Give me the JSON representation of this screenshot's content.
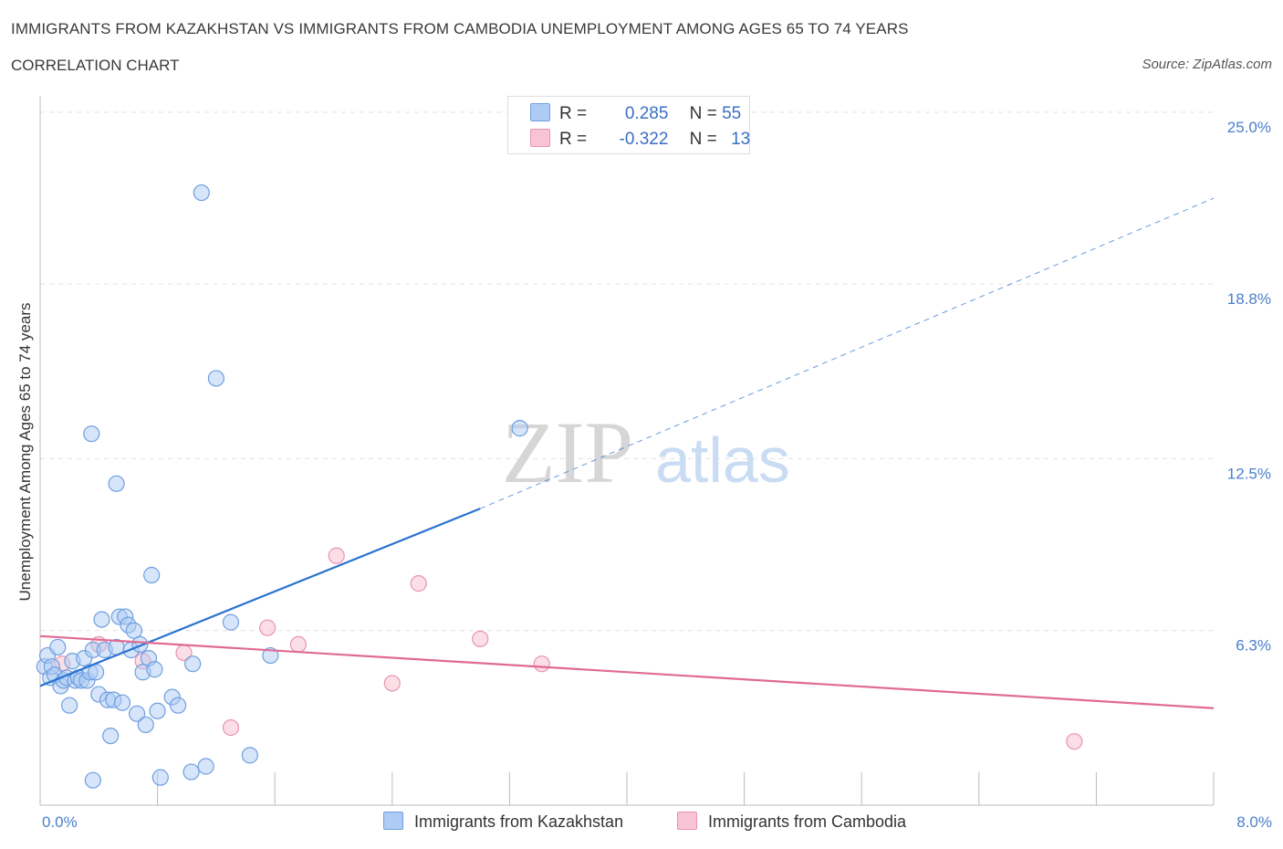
{
  "header": {
    "title": "IMMIGRANTS FROM KAZAKHSTAN VS IMMIGRANTS FROM CAMBODIA UNEMPLOYMENT AMONG AGES 65 TO 74 YEARS",
    "subtitle": "CORRELATION CHART",
    "source": "Source: ZipAtlas.com"
  },
  "watermark": {
    "zip": "ZIP",
    "atlas": "atlas"
  },
  "legend": {
    "r_label": "R =",
    "n_label": "N =",
    "series1": {
      "r": "0.285",
      "n": "55"
    },
    "series2": {
      "r": "-0.322",
      "n": "13"
    }
  },
  "colors": {
    "series1_fill": "#aecbf4",
    "series1_stroke": "#6f9fe0",
    "series1_line": "#2a72d1",
    "series2_fill": "#f8c3d2",
    "series2_stroke": "#ea93b0",
    "series2_line": "#e06a93",
    "grid": "#e2e2e2",
    "axis_text": "#4a7fcb"
  },
  "chart_data": {
    "type": "scatter",
    "title": "IMMIGRANTS FROM KAZAKHSTAN VS IMMIGRANTS FROM CAMBODIA UNEMPLOYMENT AMONG AGES 65 TO 74 YEARS",
    "xlabel": "",
    "ylabel": "Unemployment Among Ages 65 to 74 years",
    "xlim": [
      0,
      8
    ],
    "ylim": [
      0,
      25
    ],
    "x_tick_labels": [
      "0.0%",
      "8.0%"
    ],
    "y_ticks": [
      6.3,
      12.5,
      18.8,
      25.0
    ],
    "y_tick_labels": [
      "6.3%",
      "12.5%",
      "18.8%",
      "25.0%"
    ],
    "grid": true,
    "legend_position": "top-center",
    "series": [
      {
        "name": "Immigrants from Kazakhstan",
        "r": 0.285,
        "n": 55,
        "trend": {
          "x0": 0,
          "y0": 4.3,
          "x1": 3.0,
          "y1": 10.7,
          "dashed_to_x": 8.0,
          "dashed_to_y": 21.9
        },
        "points": [
          [
            0.03,
            5.0
          ],
          [
            0.05,
            5.4
          ],
          [
            0.07,
            4.6
          ],
          [
            0.08,
            5.0
          ],
          [
            0.1,
            4.7
          ],
          [
            0.12,
            5.7
          ],
          [
            0.14,
            4.3
          ],
          [
            0.16,
            4.5
          ],
          [
            0.18,
            4.6
          ],
          [
            0.2,
            3.6
          ],
          [
            0.22,
            5.2
          ],
          [
            0.24,
            4.5
          ],
          [
            0.26,
            4.6
          ],
          [
            0.28,
            4.5
          ],
          [
            0.3,
            5.3
          ],
          [
            0.32,
            4.5
          ],
          [
            0.34,
            4.8
          ],
          [
            0.36,
            5.6
          ],
          [
            0.38,
            4.8
          ],
          [
            0.4,
            4.0
          ],
          [
            0.42,
            6.7
          ],
          [
            0.44,
            5.6
          ],
          [
            0.46,
            3.8
          ],
          [
            0.48,
            2.5
          ],
          [
            0.5,
            3.8
          ],
          [
            0.52,
            5.7
          ],
          [
            0.54,
            6.8
          ],
          [
            0.56,
            3.7
          ],
          [
            0.58,
            6.8
          ],
          [
            0.6,
            6.5
          ],
          [
            0.62,
            5.6
          ],
          [
            0.64,
            6.3
          ],
          [
            0.66,
            3.3
          ],
          [
            0.68,
            5.8
          ],
          [
            0.7,
            4.8
          ],
          [
            0.72,
            2.9
          ],
          [
            0.74,
            5.3
          ],
          [
            0.76,
            8.3
          ],
          [
            0.78,
            4.9
          ],
          [
            0.8,
            3.4
          ],
          [
            0.82,
            1.0
          ],
          [
            0.9,
            3.9
          ],
          [
            0.94,
            3.6
          ],
          [
            1.03,
            1.2
          ],
          [
            1.04,
            5.1
          ],
          [
            1.1,
            22.1
          ],
          [
            1.13,
            1.4
          ],
          [
            1.3,
            6.6
          ],
          [
            1.2,
            15.4
          ],
          [
            1.43,
            1.8
          ],
          [
            1.57,
            5.4
          ],
          [
            3.27,
            13.6
          ],
          [
            0.35,
            13.4
          ],
          [
            0.52,
            11.6
          ],
          [
            0.36,
            0.9
          ]
        ]
      },
      {
        "name": "Immigrants from Cambodia",
        "r": -0.322,
        "n": 13,
        "trend": {
          "x0": 0,
          "y0": 6.1,
          "x1": 8.0,
          "y1": 3.5
        },
        "points": [
          [
            0.15,
            5.1
          ],
          [
            0.4,
            5.8
          ],
          [
            0.7,
            5.2
          ],
          [
            0.98,
            5.5
          ],
          [
            1.3,
            2.8
          ],
          [
            1.55,
            6.4
          ],
          [
            1.76,
            5.8
          ],
          [
            2.02,
            9.0
          ],
          [
            2.4,
            4.4
          ],
          [
            2.58,
            8.0
          ],
          [
            3.0,
            6.0
          ],
          [
            3.42,
            5.1
          ],
          [
            7.05,
            2.3
          ]
        ]
      }
    ]
  },
  "bottom_legend": {
    "series1_label": "Immigrants from Kazakhstan",
    "series2_label": "Immigrants from Cambodia"
  }
}
